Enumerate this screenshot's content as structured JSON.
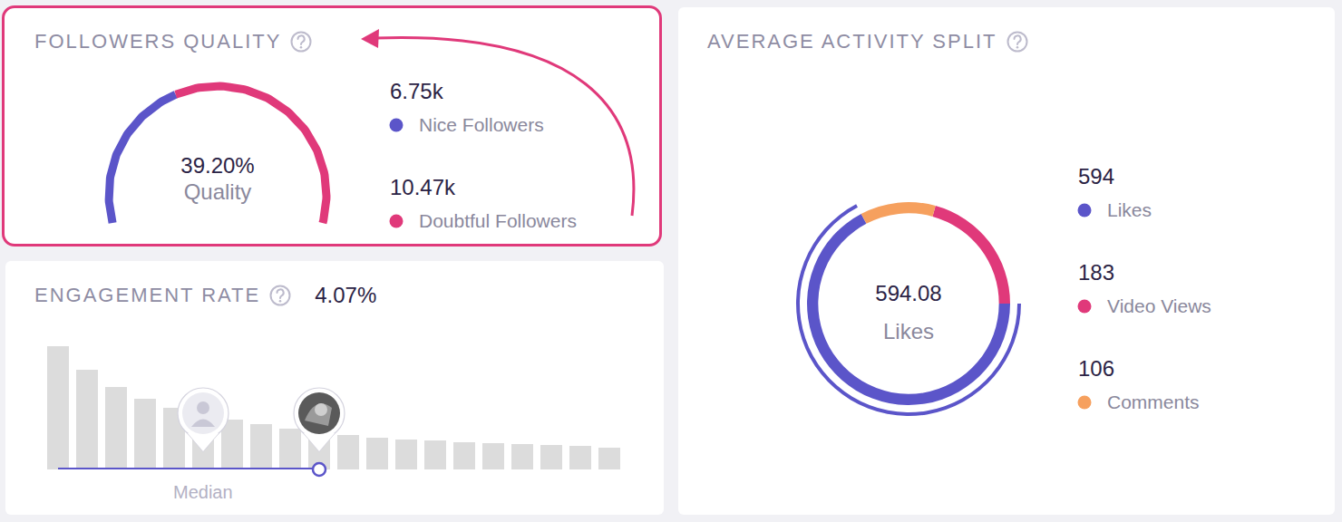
{
  "chart_data": [
    {
      "type": "gauge",
      "title": "FOLLOWERS QUALITY",
      "center_text": "39.20%",
      "center_label": "Quality",
      "categories": [
        "Nice Followers",
        "Doubtful Followers"
      ],
      "values": [
        6750,
        10470
      ],
      "value_labels": [
        "6.75k",
        "10.47k"
      ],
      "colors": [
        "#5b55c9",
        "#e0397a"
      ]
    },
    {
      "type": "bar",
      "title": "ENGAGEMENT RATE",
      "value_text": "4.07%",
      "categories": [
        null,
        null,
        null,
        null,
        null,
        null,
        null,
        null,
        null,
        null,
        null,
        null,
        null,
        null,
        null,
        null,
        null,
        null,
        null,
        null
      ],
      "values": [
        136,
        110,
        91,
        78,
        68,
        60,
        55,
        50,
        45,
        40,
        38,
        35,
        33,
        32,
        30,
        29,
        28,
        27,
        26,
        24
      ],
      "ylim": [
        0,
        148
      ],
      "tick_labels": false,
      "color": "#dcdcdc",
      "median_position": 5,
      "account_position": 9,
      "median_label": "Median"
    },
    {
      "type": "pie",
      "title": "AVERAGE ACTIVITY SPLIT",
      "center_text": "594.08",
      "center_label": "Likes",
      "categories": [
        "Likes",
        "Video Views",
        "Comments"
      ],
      "values": [
        594,
        183,
        106
      ],
      "colors": [
        "#5b55c9",
        "#e0397a",
        "#f6a05e"
      ],
      "data_labels": false
    }
  ]
}
